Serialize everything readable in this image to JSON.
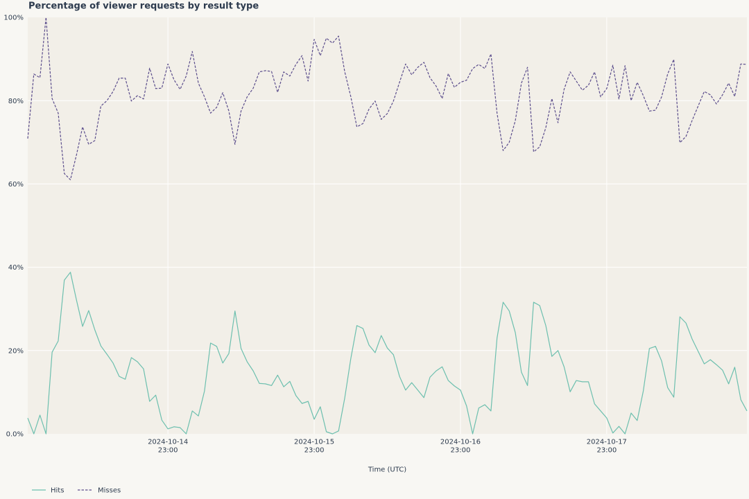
{
  "chart_data": {
    "type": "line",
    "title": "Percentage of viewer requests by result type",
    "xlabel": "Time (UTC)",
    "ylabel": "",
    "xlim": [
      0,
      118
    ],
    "ylim": [
      0,
      100
    ],
    "grid": true,
    "legend": "bottom-left",
    "x_ticks": [
      {
        "x": 23,
        "label": "2024-10-14",
        "sublabel": "23:00"
      },
      {
        "x": 47,
        "label": "2024-10-15",
        "sublabel": "23:00"
      },
      {
        "x": 71,
        "label": "2024-10-16",
        "sublabel": "23:00"
      },
      {
        "x": 95,
        "label": "2024-10-17",
        "sublabel": "23:00"
      }
    ],
    "y_ticks": [
      {
        "value": 0,
        "label": "0.0%"
      },
      {
        "value": 20,
        "label": "20%"
      },
      {
        "value": 40,
        "label": "40%"
      },
      {
        "value": 60,
        "label": "60%"
      },
      {
        "value": 80,
        "label": "80%"
      },
      {
        "value": 100,
        "label": "100%"
      }
    ],
    "x": [
      0,
      1,
      2,
      3,
      4,
      5,
      6,
      7,
      8,
      9,
      10,
      11,
      12,
      13,
      14,
      15,
      16,
      17,
      18,
      19,
      20,
      21,
      22,
      23,
      24,
      25,
      26,
      27,
      28,
      29,
      30,
      31,
      32,
      33,
      34,
      35,
      36,
      37,
      38,
      39,
      40,
      41,
      42,
      43,
      44,
      45,
      46,
      47,
      48,
      49,
      50,
      51,
      52,
      53,
      54,
      55,
      56,
      57,
      58,
      59,
      60,
      61,
      62,
      63,
      64,
      65,
      66,
      67,
      68,
      69,
      70,
      71,
      72,
      73,
      74,
      75,
      76,
      77,
      78,
      79,
      80,
      81,
      82,
      83,
      84,
      85,
      86,
      87,
      88,
      89,
      90,
      91,
      92,
      93,
      94,
      95,
      96,
      97,
      98,
      99,
      100,
      101,
      102,
      103,
      104,
      105,
      106,
      107,
      108,
      109,
      110,
      111,
      112,
      113,
      114,
      115,
      116,
      117,
      118
    ],
    "series": [
      {
        "name": "Hits",
        "color": "#6cbfae",
        "dashed": false,
        "values": [
          3.8,
          0,
          4.5,
          0,
          19.6,
          22.3,
          36.9,
          38.8,
          32.1,
          25.8,
          29.6,
          25.0,
          21.1,
          19.1,
          17.0,
          13.8,
          13.1,
          18.3,
          17.3,
          15.6,
          7.8,
          9.3,
          3.3,
          1.2,
          1.7,
          1.5,
          0,
          5.5,
          4.3,
          10.3,
          21.8,
          21.0,
          17.0,
          19.3,
          29.5,
          20.5,
          17.3,
          15.1,
          12.1,
          12.0,
          11.6,
          14.1,
          11.3,
          12.6,
          9.2,
          7.3,
          7.8,
          3.5,
          6.5,
          0.5,
          0,
          0.7,
          8.5,
          18.0,
          26.0,
          25.3,
          21.3,
          19.5,
          23.6,
          20.6,
          19.0,
          13.8,
          10.5,
          12.3,
          10.5,
          8.7,
          13.6,
          15.1,
          16.1,
          12.8,
          11.5,
          10.5,
          6.7,
          0,
          6.2,
          7.0,
          5.5,
          23.0,
          31.6,
          29.5,
          24.3,
          14.8,
          11.6,
          31.6,
          30.8,
          26.0,
          18.6,
          20.0,
          16.1,
          10.1,
          12.8,
          12.5,
          12.5,
          7.2,
          5.5,
          3.8,
          0.2,
          1.8,
          0,
          5.0,
          3.2,
          10.3,
          20.5,
          21.0,
          17.5,
          11.1,
          8.8,
          28.1,
          26.6,
          22.8,
          19.8,
          16.8,
          17.8,
          16.6,
          15.3,
          12.0,
          16.0,
          8.2,
          5.5
        ]
      },
      {
        "name": "Misses",
        "color": "#5b4d8c",
        "dashed": true,
        "values": [
          70.9,
          86.4,
          85.5,
          100,
          80.5,
          77.0,
          62.5,
          61.0,
          67.0,
          73.7,
          69.5,
          70.4,
          78.7,
          80.0,
          82.2,
          85.4,
          85.4,
          79.9,
          81.2,
          80.4,
          87.8,
          82.9,
          83.0,
          88.8,
          85.0,
          82.7,
          85.9,
          91.8,
          84.2,
          80.9,
          77.0,
          78.4,
          81.9,
          77.5,
          69.5,
          77.5,
          80.9,
          83.0,
          86.9,
          87.2,
          87.0,
          82.0,
          86.9,
          85.9,
          88.7,
          90.8,
          84.7,
          94.7,
          90.8,
          95.0,
          93.8,
          95.5,
          87.0,
          81.0,
          73.7,
          74.5,
          78.0,
          79.9,
          75.5,
          76.9,
          79.9,
          84.4,
          88.8,
          86.2,
          88.0,
          89.2,
          85.5,
          83.5,
          80.5,
          86.5,
          83.2,
          84.4,
          84.9,
          87.7,
          88.7,
          87.7,
          91.2,
          77.0,
          68.0,
          70.0,
          75.2,
          84.2,
          88.0,
          67.7,
          68.9,
          73.5,
          80.5,
          74.7,
          82.7,
          86.9,
          84.7,
          82.5,
          83.7,
          86.9,
          80.9,
          82.9,
          88.5,
          80.4,
          88.4,
          80.0,
          84.4,
          81.2,
          77.5,
          77.7,
          80.9,
          86.4,
          89.9,
          69.9,
          71.4,
          75.2,
          78.7,
          82.2,
          81.4,
          79.2,
          81.4,
          84.2,
          81.0,
          88.8,
          88.7
        ]
      }
    ]
  },
  "colors": {
    "page_background": "#f8f7f3",
    "plot_background": "#f2efe8",
    "text": "#2d3b4e",
    "grid": "#ffffff"
  }
}
